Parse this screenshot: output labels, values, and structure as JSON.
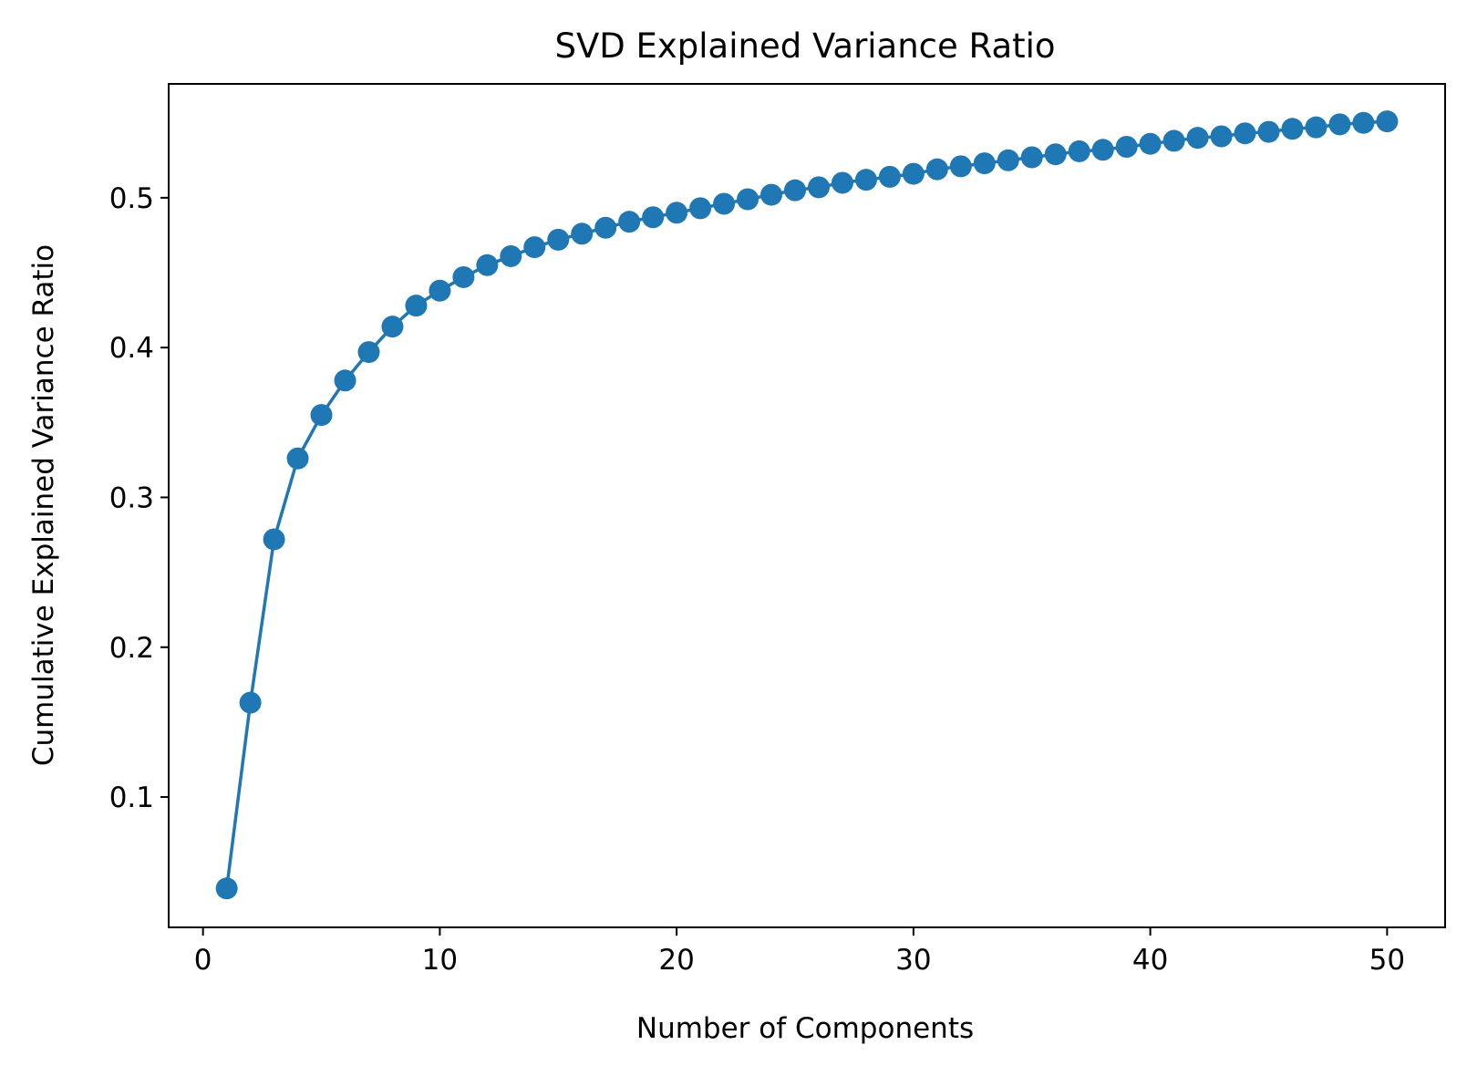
{
  "chart_data": {
    "type": "line",
    "title": "SVD Explained Variance Ratio",
    "xlabel": "Number of Components",
    "ylabel": "Cumulative Explained Variance Ratio",
    "xlim": [
      -1.45,
      52.45
    ],
    "ylim": [
      0.013,
      0.576
    ],
    "xticks": [
      0,
      10,
      20,
      30,
      40,
      50
    ],
    "xtick_labels": [
      "0",
      "10",
      "20",
      "30",
      "40",
      "50"
    ],
    "yticks": [
      0.1,
      0.2,
      0.3,
      0.4,
      0.5
    ],
    "ytick_labels": [
      "0.1",
      "0.2",
      "0.3",
      "0.4",
      "0.5"
    ],
    "grid": false,
    "marker": "circle",
    "color": "#1f77b4",
    "series": [
      {
        "x": [
          1,
          2,
          3,
          4,
          5,
          6,
          7,
          8,
          9,
          10,
          11,
          12,
          13,
          14,
          15,
          16,
          17,
          18,
          19,
          20,
          21,
          22,
          23,
          24,
          25,
          26,
          27,
          28,
          29,
          30,
          31,
          32,
          33,
          34,
          35,
          36,
          37,
          38,
          39,
          40,
          41,
          42,
          43,
          44,
          45,
          46,
          47,
          48,
          49,
          50
        ],
        "values": [
          0.039,
          0.163,
          0.272,
          0.326,
          0.355,
          0.378,
          0.397,
          0.414,
          0.428,
          0.438,
          0.447,
          0.455,
          0.461,
          0.467,
          0.472,
          0.476,
          0.48,
          0.484,
          0.487,
          0.49,
          0.493,
          0.496,
          0.499,
          0.502,
          0.505,
          0.507,
          0.51,
          0.512,
          0.514,
          0.516,
          0.519,
          0.521,
          0.523,
          0.525,
          0.527,
          0.529,
          0.531,
          0.532,
          0.534,
          0.536,
          0.538,
          0.54,
          0.541,
          0.543,
          0.544,
          0.546,
          0.547,
          0.549,
          0.55,
          0.551
        ]
      }
    ]
  }
}
